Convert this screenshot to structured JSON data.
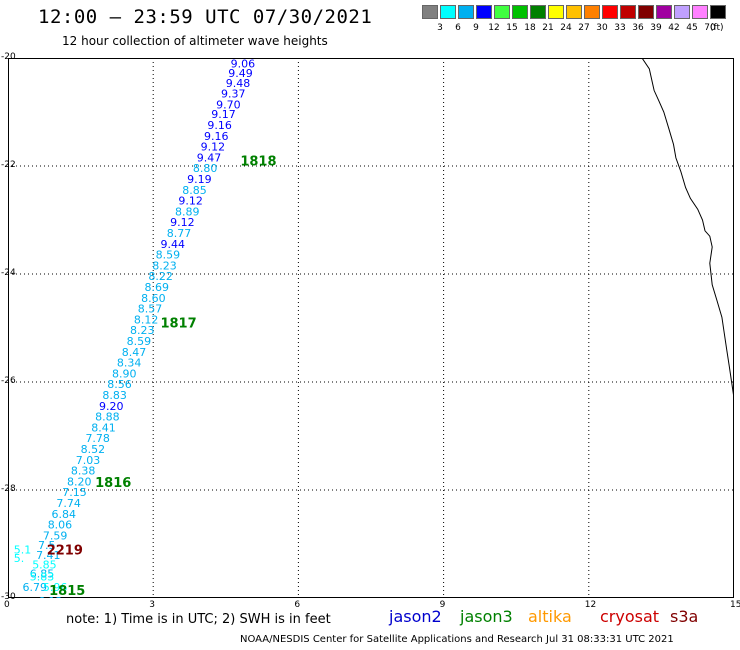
{
  "header": {
    "title": "12:00 – 23:59 UTC 07/30/2021",
    "subtitle": "12 hour collection of altimeter wave heights"
  },
  "legend": {
    "unit": "(ft)",
    "bins": [
      {
        "label": "3",
        "color": "#808080"
      },
      {
        "label": "6",
        "color": "#00ffff"
      },
      {
        "label": "9",
        "color": "#00b0f0"
      },
      {
        "label": "12",
        "color": "#0000ff"
      },
      {
        "label": "15",
        "color": "#40ff40"
      },
      {
        "label": "18",
        "color": "#00c000"
      },
      {
        "label": "21",
        "color": "#008000"
      },
      {
        "label": "24",
        "color": "#ffff00"
      },
      {
        "label": "27",
        "color": "#ffc000"
      },
      {
        "label": "30",
        "color": "#ff8000"
      },
      {
        "label": "33",
        "color": "#ff0000"
      },
      {
        "label": "36",
        "color": "#c00000"
      },
      {
        "label": "39",
        "color": "#800000"
      },
      {
        "label": "42",
        "color": "#a000a0"
      },
      {
        "label": "45",
        "color": "#c0a0ff"
      },
      {
        "label": "70",
        "color": "#ff80ff"
      },
      {
        "label": "",
        "color": "#000000"
      }
    ]
  },
  "axes": {
    "x_ticks": [
      "0",
      "3",
      "6",
      "9",
      "12",
      "15"
    ],
    "y_ticks": [
      "-20",
      "-22",
      "-24",
      "-26",
      "-28",
      "-30"
    ]
  },
  "track_points": [
    {
      "v": "9.06",
      "x": 4.6,
      "y": -20.1,
      "c": "#0000ff"
    },
    {
      "v": "9.49",
      "x": 4.55,
      "y": -20.28,
      "c": "#0000ff"
    },
    {
      "v": "9.48",
      "x": 4.5,
      "y": -20.46,
      "c": "#0000ff"
    },
    {
      "v": "9.37",
      "x": 4.4,
      "y": -20.66,
      "c": "#0000ff"
    },
    {
      "v": "9.70",
      "x": 4.3,
      "y": -20.86,
      "c": "#0000ff"
    },
    {
      "v": "9.17",
      "x": 4.2,
      "y": -21.04,
      "c": "#0000ff"
    },
    {
      "v": "9.16",
      "x": 4.12,
      "y": -21.24,
      "c": "#0000ff"
    },
    {
      "v": "9.16",
      "x": 4.05,
      "y": -21.44,
      "c": "#0000ff"
    },
    {
      "v": "9.12",
      "x": 3.98,
      "y": -21.64,
      "c": "#0000ff"
    },
    {
      "v": "9.47",
      "x": 3.9,
      "y": -21.84,
      "c": "#0000ff"
    },
    {
      "v": "8.80",
      "x": 3.82,
      "y": -22.04,
      "c": "#00b0f0"
    },
    {
      "v": "9.19",
      "x": 3.7,
      "y": -22.24,
      "c": "#0000ff"
    },
    {
      "v": "8.85",
      "x": 3.6,
      "y": -22.44,
      "c": "#00b0f0"
    },
    {
      "v": "9.12",
      "x": 3.52,
      "y": -22.64,
      "c": "#0000ff"
    },
    {
      "v": "8.89",
      "x": 3.45,
      "y": -22.84,
      "c": "#00b0f0"
    },
    {
      "v": "9.12",
      "x": 3.35,
      "y": -23.04,
      "c": "#0000ff"
    },
    {
      "v": "8.77",
      "x": 3.28,
      "y": -23.24,
      "c": "#00b0f0"
    },
    {
      "v": "9.44",
      "x": 3.15,
      "y": -23.44,
      "c": "#0000ff"
    },
    {
      "v": "8.59",
      "x": 3.05,
      "y": -23.64,
      "c": "#00b0f0"
    },
    {
      "v": "8.23",
      "x": 2.98,
      "y": -23.84,
      "c": "#00b0f0"
    },
    {
      "v": "8.22",
      "x": 2.9,
      "y": -24.04,
      "c": "#00b0f0"
    },
    {
      "v": "8.69",
      "x": 2.82,
      "y": -24.24,
      "c": "#00b0f0"
    },
    {
      "v": "8.60",
      "x": 2.75,
      "y": -24.44,
      "c": "#00b0f0"
    },
    {
      "v": "8.57",
      "x": 2.68,
      "y": -24.64,
      "c": "#00b0f0"
    },
    {
      "v": "8.12",
      "x": 2.6,
      "y": -24.84,
      "c": "#00b0f0"
    },
    {
      "v": "8.23",
      "x": 2.52,
      "y": -25.04,
      "c": "#00b0f0"
    },
    {
      "v": "8.59",
      "x": 2.45,
      "y": -25.24,
      "c": "#00b0f0"
    },
    {
      "v": "8.47",
      "x": 2.35,
      "y": -25.44,
      "c": "#00b0f0"
    },
    {
      "v": "8.34",
      "x": 2.25,
      "y": -25.64,
      "c": "#00b0f0"
    },
    {
      "v": "8.90",
      "x": 2.15,
      "y": -25.84,
      "c": "#00b0f0"
    },
    {
      "v": "8.56",
      "x": 2.05,
      "y": -26.04,
      "c": "#00b0f0"
    },
    {
      "v": "8.83",
      "x": 1.95,
      "y": -26.24,
      "c": "#00b0f0"
    },
    {
      "v": "9.20",
      "x": 1.88,
      "y": -26.44,
      "c": "#0000ff"
    },
    {
      "v": "8.88",
      "x": 1.8,
      "y": -26.64,
      "c": "#00b0f0"
    },
    {
      "v": "8.41",
      "x": 1.72,
      "y": -26.84,
      "c": "#00b0f0"
    },
    {
      "v": "7.78",
      "x": 1.6,
      "y": -27.04,
      "c": "#00b0f0"
    },
    {
      "v": "8.52",
      "x": 1.5,
      "y": -27.24,
      "c": "#00b0f0"
    },
    {
      "v": "7.03",
      "x": 1.4,
      "y": -27.44,
      "c": "#00b0f0"
    },
    {
      "v": "8.38",
      "x": 1.3,
      "y": -27.64,
      "c": "#00b0f0"
    },
    {
      "v": "8.20",
      "x": 1.22,
      "y": -27.84,
      "c": "#00b0f0"
    },
    {
      "v": "7.15",
      "x": 1.12,
      "y": -28.04,
      "c": "#00b0f0"
    },
    {
      "v": "7.74",
      "x": 1.0,
      "y": -28.24,
      "c": "#00b0f0"
    },
    {
      "v": "6.84",
      "x": 0.9,
      "y": -28.44,
      "c": "#00b0f0"
    },
    {
      "v": "8.06",
      "x": 0.82,
      "y": -28.64,
      "c": "#00b0f0"
    },
    {
      "v": "7.59",
      "x": 0.72,
      "y": -28.84,
      "c": "#00b0f0"
    },
    {
      "v": "7.5",
      "x": 0.62,
      "y": -29.02,
      "c": "#00b0f0"
    },
    {
      "v": "5.1",
      "x": 0.12,
      "y": -29.1,
      "c": "#00ffff"
    },
    {
      "v": "7.41",
      "x": 0.58,
      "y": -29.2,
      "c": "#00b0f0"
    },
    {
      "v": "5.",
      "x": 0.12,
      "y": -29.26,
      "c": "#00ffff"
    },
    {
      "v": "5.85",
      "x": 0.5,
      "y": -29.38,
      "c": "#00ffff"
    },
    {
      "v": "6.85",
      "x": 0.45,
      "y": -29.55,
      "c": "#00b0f0"
    },
    {
      "v": "5.83",
      "x": 0.45,
      "y": -29.6,
      "c": "#00ffff"
    },
    {
      "v": "6.79",
      "x": 0.3,
      "y": -29.8,
      "c": "#00b0f0"
    },
    {
      "v": "5.96",
      "x": 0.72,
      "y": -29.8,
      "c": "#00ffff"
    },
    {
      "v": "6.12",
      "x": 0.62,
      "y": -30.06,
      "c": "#00b0f0"
    }
  ],
  "pass_labels": [
    {
      "text": "1818",
      "x": 4.8,
      "y": -21.9,
      "color": "#008000"
    },
    {
      "text": "1817",
      "x": 3.15,
      "y": -24.9,
      "color": "#008000"
    },
    {
      "text": "1816",
      "x": 1.8,
      "y": -27.85,
      "color": "#008000"
    },
    {
      "text": "2219",
      "x": 0.8,
      "y": -29.1,
      "color": "#800000"
    },
    {
      "text": "1815",
      "x": 0.85,
      "y": -29.85,
      "color": "#008000"
    }
  ],
  "coastline": [
    [
      13.1,
      -20.0
    ],
    [
      13.25,
      -20.2
    ],
    [
      13.3,
      -20.4
    ],
    [
      13.35,
      -20.6
    ],
    [
      13.45,
      -20.8
    ],
    [
      13.55,
      -21.0
    ],
    [
      13.65,
      -21.3
    ],
    [
      13.75,
      -21.6
    ],
    [
      13.8,
      -21.85
    ],
    [
      13.9,
      -22.1
    ],
    [
      14.0,
      -22.4
    ],
    [
      14.1,
      -22.6
    ],
    [
      14.25,
      -22.8
    ],
    [
      14.35,
      -23.0
    ],
    [
      14.4,
      -23.2
    ],
    [
      14.5,
      -23.3
    ],
    [
      14.55,
      -23.5
    ],
    [
      14.5,
      -23.8
    ],
    [
      14.55,
      -24.2
    ],
    [
      14.65,
      -24.5
    ],
    [
      14.75,
      -24.8
    ],
    [
      14.8,
      -25.1
    ],
    [
      14.85,
      -25.4
    ],
    [
      14.9,
      -25.7
    ],
    [
      14.95,
      -26.0
    ],
    [
      15.0,
      -26.3
    ],
    [
      15.0,
      -26.4
    ]
  ],
  "note": "note:  1) Time is in UTC;  2) SWH is in feet",
  "satellites": [
    {
      "name": "jason2",
      "color": "#0000cc"
    },
    {
      "name": "jason3",
      "color": "#008000"
    },
    {
      "name": "altika",
      "color": "#ff9900"
    },
    {
      "name": "cryosat",
      "color": "#cc0000"
    },
    {
      "name": "s3a",
      "color": "#800000"
    }
  ],
  "footer": "NOAA/NESDIS Center for Satellite Applications and Research    Jul 31 08:33:31 UTC 2021"
}
